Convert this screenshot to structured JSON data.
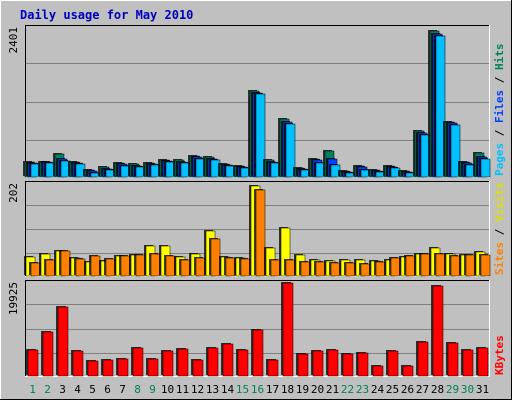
{
  "chart_data": {
    "type": "bar",
    "title": "Daily usage for May 2010",
    "categories": [
      "1",
      "2",
      "3",
      "4",
      "5",
      "6",
      "7",
      "8",
      "9",
      "10",
      "11",
      "12",
      "13",
      "14",
      "15",
      "16",
      "17",
      "18",
      "19",
      "20",
      "21",
      "22",
      "23",
      "24",
      "25",
      "26",
      "27",
      "28",
      "29",
      "30",
      "31"
    ],
    "weekend_days": [
      "1",
      "2",
      "8",
      "9",
      "15",
      "16",
      "22",
      "23",
      "29",
      "30"
    ],
    "panels": [
      {
        "id": "top",
        "max_label": "2401",
        "ymax": 2401,
        "legend": [
          {
            "text": "Hits",
            "color": "#00805c"
          },
          {
            "text": " / ",
            "color": "#000000"
          },
          {
            "text": "Files",
            "color": "#0040ff"
          },
          {
            "text": " / ",
            "color": "#000000"
          },
          {
            "text": "Pages",
            "color": "#00c0ff"
          }
        ],
        "series": [
          {
            "name": "Hits",
            "color": "#008060",
            "values": [
              250,
              250,
              370,
              250,
              110,
              170,
              230,
              210,
              230,
              280,
              270,
              350,
              320,
              220,
              180,
              1400,
              270,
              950,
              150,
              290,
              420,
              90,
              180,
              110,
              180,
              90,
              750,
              2380,
              900,
              250,
              390
            ]
          },
          {
            "name": "Files",
            "color": "#0040ff",
            "values": [
              230,
              240,
              290,
              230,
              90,
              130,
              210,
              180,
              210,
              260,
              250,
              330,
              300,
              200,
              160,
              1370,
              250,
              900,
              130,
              270,
              290,
              80,
              160,
              100,
              160,
              80,
              720,
              2330,
              880,
              230,
              320
            ]
          },
          {
            "name": "Pages",
            "color": "#00c0ff",
            "values": [
              220,
              230,
              260,
              220,
              70,
              110,
              180,
              160,
              190,
              240,
              230,
              300,
              280,
              180,
              140,
              1350,
              230,
              870,
              110,
              230,
              190,
              60,
              120,
              80,
              140,
              60,
              680,
              2300,
              850,
              200,
              290
            ]
          }
        ]
      },
      {
        "id": "middle",
        "max_label": "202",
        "ymax": 202,
        "legend": [
          {
            "text": "Visits",
            "color": "#e0e000"
          },
          {
            "text": " / ",
            "color": "#000000"
          },
          {
            "text": "Sites",
            "color": "#ff8000"
          }
        ],
        "series": [
          {
            "name": "Visits",
            "color": "#ffff00",
            "values": [
              42,
              50,
              57,
              40,
              32,
              33,
              44,
              47,
              67,
              68,
              42,
              50,
              100,
              42,
              40,
              202,
              62,
              107,
              47,
              36,
              34,
              35,
              36,
              33,
              37,
              43,
              50,
              62,
              50,
              48,
              53
            ]
          },
          {
            "name": "Sites",
            "color": "#ff8000",
            "values": [
              30,
              36,
              55,
              38,
              44,
              38,
              46,
              48,
              50,
              44,
              36,
              40,
              82,
              40,
              38,
              192,
              36,
              36,
              32,
              32,
              29,
              30,
              28,
              31,
              40,
              44,
              50,
              50,
              46,
              48,
              48
            ]
          }
        ]
      },
      {
        "id": "bottom",
        "max_label": "19925",
        "ymax": 19925,
        "legend": [
          {
            "text": "KBytes",
            "color": "#ff0000"
          }
        ],
        "series": [
          {
            "name": "KBytes",
            "color": "#ff0000",
            "values": [
              5800,
              9700,
              15200,
              5400,
              3300,
              3500,
              3800,
              6200,
              3800,
              5400,
              6000,
              3600,
              6200,
              7000,
              5700,
              10100,
              3600,
              20300,
              4900,
              5500,
              5800,
              4800,
              5000,
              2100,
              5400,
              2100,
              7500,
              19700,
              7300,
              5700,
              6100
            ]
          }
        ]
      }
    ]
  }
}
